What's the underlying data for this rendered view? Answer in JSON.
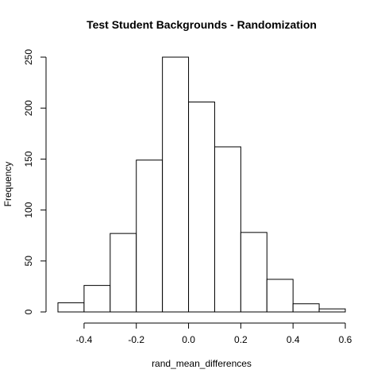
{
  "chart_data": {
    "type": "bar",
    "title": "Test Student Backgrounds - Randomization",
    "xlabel": "rand_mean_differences",
    "ylabel": "Frequency",
    "bin_edges": [
      -0.5,
      -0.4,
      -0.3,
      -0.2,
      -0.1,
      0.0,
      0.1,
      0.2,
      0.3,
      0.4,
      0.5,
      0.6
    ],
    "values": [
      9,
      26,
      77,
      149,
      250,
      206,
      162,
      78,
      32,
      8,
      3
    ],
    "xlim": [
      -0.5,
      0.6
    ],
    "ylim": [
      0,
      250
    ],
    "x_ticks": [
      -0.4,
      -0.2,
      0.0,
      0.2,
      0.4,
      0.6
    ],
    "x_tick_labels": [
      "-0.4",
      "-0.2",
      "0.0",
      "0.2",
      "0.4",
      "0.6"
    ],
    "y_ticks": [
      0,
      50,
      100,
      150,
      200,
      250
    ],
    "y_tick_labels": [
      "0",
      "50",
      "100",
      "150",
      "200",
      "250"
    ],
    "grid": false,
    "legend": "none",
    "bar_fill": "#ffffff",
    "bar_stroke": "#000000"
  }
}
